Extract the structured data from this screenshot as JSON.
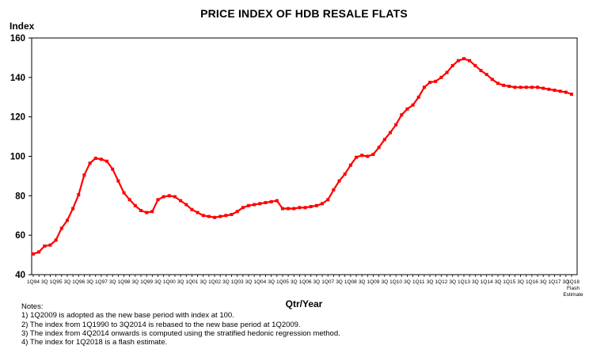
{
  "chart_data": {
    "type": "line",
    "title": "PRICE INDEX OF HDB RESALE FLATS",
    "ylabel": "Index",
    "xlabel": "Qtr/Year",
    "ylim": [
      40,
      160
    ],
    "yticks": [
      40,
      60,
      80,
      100,
      120,
      140,
      160
    ],
    "grid": false,
    "line_color": "#ff0000",
    "x_tick_labels": [
      "1Q94",
      "3Q",
      "1Q95",
      "3Q",
      "1Q96",
      "3Q",
      "1Q97",
      "3Q",
      "1Q98",
      "3Q",
      "1Q99",
      "3Q",
      "1Q00",
      "3Q",
      "1Q01",
      "3Q",
      "1Q02",
      "3Q",
      "1Q03",
      "3Q",
      "1Q04",
      "3Q",
      "1Q05",
      "3Q",
      "1Q06",
      "3Q",
      "1Q07",
      "3Q",
      "1Q08",
      "3Q",
      "1Q09",
      "3Q",
      "1Q10",
      "3Q",
      "1Q11",
      "3Q",
      "1Q12",
      "3Q",
      "1Q13",
      "3Q",
      "1Q14",
      "3Q",
      "1Q15",
      "3Q",
      "1Q16",
      "3Q",
      "1Q17",
      "3Q",
      "1Q18"
    ],
    "last_label_extra": [
      "Flash",
      "Estimate"
    ],
    "values": [
      50.5,
      51.5,
      54.5,
      55,
      57.5,
      63.5,
      67.5,
      73.5,
      80.5,
      90.5,
      96.5,
      99,
      98.5,
      97.5,
      93.5,
      87.5,
      81.5,
      78,
      75,
      72.5,
      71.5,
      72,
      78,
      79.5,
      80,
      79.5,
      77.5,
      75.5,
      73,
      71.5,
      70,
      69.5,
      69,
      69.5,
      70,
      70.5,
      72,
      74,
      75,
      75.5,
      76,
      76.5,
      77,
      77.5,
      73.5,
      73.5,
      73.5,
      74,
      74,
      74.5,
      75,
      76,
      78,
      83,
      87.5,
      91,
      95.5,
      99.5,
      100.5,
      100,
      101,
      104.5,
      108.5,
      112,
      116,
      121,
      124,
      126,
      130,
      135,
      137.5,
      138,
      140,
      142.5,
      146,
      148.5,
      149.5,
      148.5,
      146,
      143.5,
      141.5,
      139,
      137,
      136,
      135.5,
      135,
      135,
      135,
      135,
      135,
      134.5,
      134,
      133.5,
      133,
      132.5,
      131.5
    ]
  },
  "notes": {
    "heading": "Notes:",
    "lines": [
      "1) 1Q2009 is adopted as the new base period with index at 100.",
      "2) The index from 1Q1990 to 3Q2014 is rebased to the new base period at 1Q2009.",
      "3) The index from 4Q2014 onwards is computed using the stratified hedonic regression method.",
      "4) The index for 1Q2018 is a flash estimate."
    ]
  }
}
